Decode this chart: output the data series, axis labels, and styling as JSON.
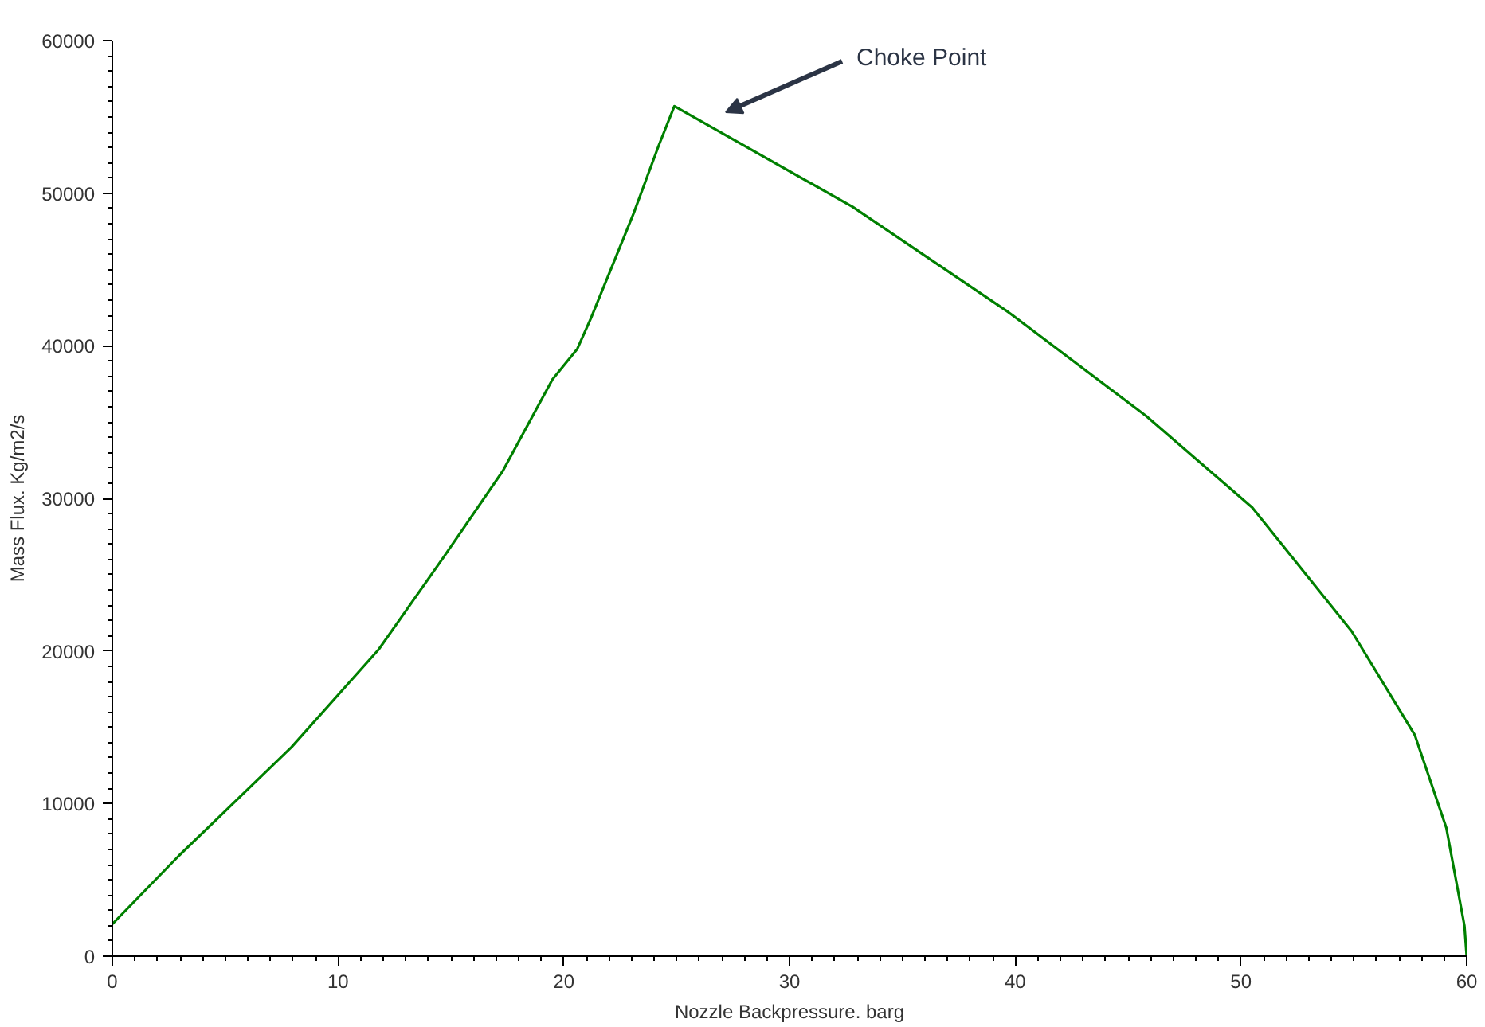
{
  "chart_data": {
    "type": "line",
    "xlabel": "Nozzle Backpressure. barg",
    "ylabel": "Mass Flux. Kg/m2/s",
    "annotations": [
      "Choke Point"
    ],
    "series": [
      {
        "color": "#008000",
        "x": [
          0,
          2.96,
          7.94,
          11.8,
          14.7,
          17.3,
          19.5,
          20.6,
          21.2,
          23.1,
          24.2,
          24.9,
          32.8,
          39.7,
          45.8,
          50.5,
          54.9,
          57.7,
          59.1,
          59.9,
          60
        ],
        "values": [
          2100,
          6600,
          13700,
          20100,
          26200,
          31800,
          37800,
          39800,
          41800,
          48700,
          53100,
          55700,
          49100,
          42200,
          35400,
          29400,
          21300,
          14500,
          8400,
          2000,
          0
        ]
      }
    ],
    "xlim": [
      0,
      60
    ],
    "ylim": [
      0,
      60000
    ],
    "xticks": [
      0,
      10,
      20,
      30,
      40,
      50,
      60
    ],
    "yticks": [
      0,
      10000,
      20000,
      30000,
      40000,
      50000,
      60000
    ],
    "grid": false,
    "marker": "none",
    "line_style": "solid"
  }
}
